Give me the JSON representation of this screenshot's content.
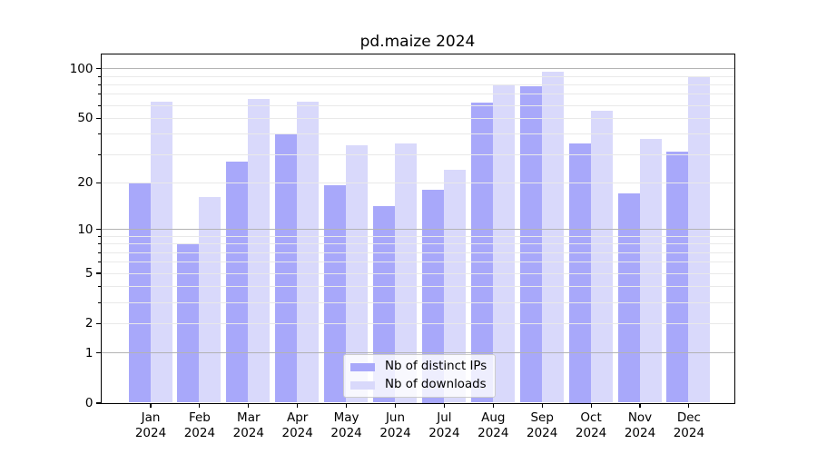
{
  "chart_data": {
    "type": "bar",
    "title": "pd.maize 2024",
    "categories": [
      "Jan",
      "Feb",
      "Mar",
      "Apr",
      "May",
      "Jun",
      "Jul",
      "Aug",
      "Sep",
      "Oct",
      "Nov",
      "Dec"
    ],
    "category_year": "2024",
    "series": [
      {
        "name": "Nb of distinct IPs",
        "color": "#a8a8fa",
        "values": [
          20,
          8,
          27,
          40,
          19,
          14,
          18,
          62,
          78,
          35,
          17,
          31
        ]
      },
      {
        "name": "Nb of downloads",
        "color": "#d9d9fb",
        "values": [
          63,
          16,
          65,
          63,
          34,
          35,
          24,
          80,
          95,
          55,
          37,
          88
        ]
      }
    ],
    "yscale": "log1p",
    "ylim": [
      0,
      122
    ],
    "yticks": [
      0,
      1,
      2,
      5,
      10,
      20,
      50,
      100
    ],
    "major_grid_values": [
      1,
      10,
      100
    ],
    "minor_grid_values": [
      2,
      3,
      4,
      5,
      6,
      7,
      8,
      9,
      20,
      30,
      40,
      50,
      60,
      70,
      80,
      90
    ],
    "grid": "both",
    "legend_position": "lower center",
    "colors": {
      "major_grid": "#b3b3b3",
      "minor_grid": "#e9e9e9",
      "spine": "#000000",
      "background": "#ffffff",
      "text": "#000000"
    }
  }
}
